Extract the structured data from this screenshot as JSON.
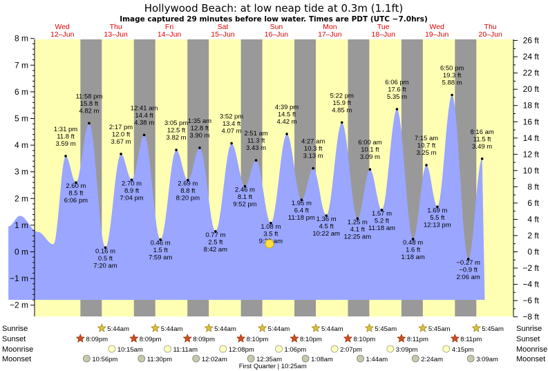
{
  "title": "Hollywood Beach: at low  neap tide at 0.3m (1.1ft)",
  "subtitle": "Image captured 29 minutes before low water. Times are PDT (UTC −7.0hrs)",
  "colors": {
    "day_bg": "#ffffb4",
    "night_bg": "#999999",
    "water": "#9aa6ff",
    "day_label": "#e00000",
    "sun_marker": "#d8c040",
    "sunset_marker": "#d05020",
    "moonrise_marker": "#ffffc0",
    "moonset_marker": "#c8c8b0"
  },
  "days": [
    {
      "dow": "Wed",
      "date": "12–Jun"
    },
    {
      "dow": "Thu",
      "date": "13–Jun"
    },
    {
      "dow": "Fri",
      "date": "14–Jun"
    },
    {
      "dow": "Sat",
      "date": "15–Jun"
    },
    {
      "dow": "Sun",
      "date": "16–Jun"
    },
    {
      "dow": "Mon",
      "date": "17–Jun"
    },
    {
      "dow": "Tue",
      "date": "18–Jun"
    },
    {
      "dow": "Wed",
      "date": "19–Jun"
    },
    {
      "dow": "Thu",
      "date": "20–Jun"
    }
  ],
  "chart_data": {
    "type": "area",
    "title": "Hollywood Beach: at low  neap tide at 0.3m (1.1ft)",
    "y_left": {
      "unit": "m",
      "range": [
        -2,
        8
      ],
      "ticks": [
        "8 m",
        "7 m",
        "6 m",
        "5 m",
        "4 m",
        "3 m",
        "2 m",
        "1 m",
        "0 m",
        "−1 m",
        "−2 m"
      ]
    },
    "y_right": {
      "unit": "ft",
      "ticks": [
        "26 ft",
        "24 ft",
        "22 ft",
        "20 ft",
        "18 ft",
        "16 ft",
        "14 ft",
        "12 ft",
        "10 ft",
        "8 ft",
        "6 ft",
        "4 ft",
        "2 ft",
        "0 ft",
        "−2 ft",
        "−4 ft",
        "−6 ft",
        "−8 ft"
      ]
    },
    "x_hours_range": [
      -12,
      198
    ],
    "tides": [
      {
        "hour": 13.5,
        "m": 3.59,
        "lines": [
          "1:31 pm",
          "11.8 ft",
          "3.59 m"
        ]
      },
      {
        "hour": 18.1,
        "m": 2.6,
        "lines": [
          "2.60 m",
          "8.5 ft",
          "6:06 pm"
        ]
      },
      {
        "hour": 24.0,
        "m": 4.82,
        "lines": [
          "11:58 pm",
          "15.8 ft",
          "4.82 m"
        ]
      },
      {
        "hour": 31.3,
        "m": 0.16,
        "lines": [
          "0.16 m",
          "0.5 ft",
          "7:20 am"
        ]
      },
      {
        "hour": 38.3,
        "m": 3.67,
        "lines": [
          "2:17 pm",
          "12.0 ft",
          "3.67 m"
        ]
      },
      {
        "hour": 43.1,
        "m": 2.7,
        "lines": [
          "2.70 m",
          "8.9 ft",
          "7:04 pm"
        ]
      },
      {
        "hour": 48.7,
        "m": 4.38,
        "lines": [
          "12:41 am",
          "14.4 ft",
          "4.38 m"
        ]
      },
      {
        "hour": 56.0,
        "m": 0.46,
        "lines": [
          "0.46 m",
          "1.5 ft",
          "7:59 am"
        ]
      },
      {
        "hour": 63.1,
        "m": 3.82,
        "lines": [
          "3:05 pm",
          "12.5 ft",
          "3.82 m"
        ]
      },
      {
        "hour": 68.3,
        "m": 2.69,
        "lines": [
          "2.69 m",
          "8.8 ft",
          "8:20 pm"
        ]
      },
      {
        "hour": 73.6,
        "m": 3.9,
        "lines": [
          "1:35 am",
          "12.8 ft",
          "3.90 m"
        ]
      },
      {
        "hour": 80.7,
        "m": 0.77,
        "lines": [
          "0.77 m",
          "2.5 ft",
          "8:42 am"
        ]
      },
      {
        "hour": 87.9,
        "m": 4.07,
        "lines": [
          "3:52 pm",
          "13.4 ft",
          "4.07 m"
        ]
      },
      {
        "hour": 93.9,
        "m": 2.46,
        "lines": [
          "2.46 m",
          "8.1 ft",
          "9:52 pm"
        ]
      },
      {
        "hour": 98.9,
        "m": 3.43,
        "lines": [
          "2:51 am",
          "11.3 ft",
          "3.43 m"
        ]
      },
      {
        "hour": 105.5,
        "m": 1.08,
        "lines": [
          "1.08 m",
          "3.5 ft",
          "9:29 am"
        ]
      },
      {
        "hour": 112.7,
        "m": 4.42,
        "lines": [
          "4:39 pm",
          "14.5 ft",
          "4.42 m"
        ]
      },
      {
        "hour": 119.3,
        "m": 1.95,
        "lines": [
          "1.95 m",
          "6.4 ft",
          "11:18 pm"
        ]
      },
      {
        "hour": 124.5,
        "m": 3.13,
        "lines": [
          "4:27 am",
          "10.3 ft",
          "3.13 m"
        ]
      },
      {
        "hour": 130.4,
        "m": 1.36,
        "lines": [
          "1.36 m",
          "4.5 ft",
          "10:22 am"
        ]
      },
      {
        "hour": 137.4,
        "m": 4.85,
        "lines": [
          "5:22 pm",
          "15.9 ft",
          "4.85 m"
        ]
      },
      {
        "hour": 144.4,
        "m": 1.25,
        "lines": [
          "1.25 m",
          "4.1 ft",
          "12:25 am"
        ]
      },
      {
        "hour": 150.0,
        "m": 3.09,
        "lines": [
          "6:00 am",
          "10.1 ft",
          "3.09 m"
        ]
      },
      {
        "hour": 155.3,
        "m": 1.57,
        "lines": [
          "1.57 m",
          "5.2 ft",
          "11:18 am"
        ]
      },
      {
        "hour": 162.1,
        "m": 5.35,
        "lines": [
          "6:06 pm",
          "17.6 ft",
          "5.35 m"
        ]
      },
      {
        "hour": 169.3,
        "m": 0.48,
        "lines": [
          "0.48 m",
          "1.6 ft",
          "1:18 am"
        ]
      },
      {
        "hour": 175.3,
        "m": 3.25,
        "lines": [
          "7:15 am",
          "10.7 ft",
          "3.25 m"
        ]
      },
      {
        "hour": 180.2,
        "m": 1.69,
        "lines": [
          "1.69 m",
          "5.5 ft",
          "12:13 pm"
        ]
      },
      {
        "hour": 186.8,
        "m": 5.88,
        "lines": [
          "6:50 pm",
          "19.3 ft",
          "5.88 m"
        ]
      },
      {
        "hour": 194.1,
        "m": -0.27,
        "lines": [
          "−0.27 m",
          "−0.9 ft",
          "2:06 am"
        ]
      },
      {
        "hour": 200.3,
        "m": 3.49,
        "lines": [
          "8:16 am",
          "11.5 ft",
          "3.49 m"
        ]
      }
    ]
  },
  "events": {
    "labels": {
      "sunrise": "Sunrise",
      "sunset": "Sunset",
      "moonrise": "Moonrise",
      "moonset": "Moonset"
    },
    "sunrise": [
      {
        "hour": 29.7,
        "t": "5:44am"
      },
      {
        "hour": 53.7,
        "t": "5:44am"
      },
      {
        "hour": 77.7,
        "t": "5:44am"
      },
      {
        "hour": 101.7,
        "t": "5:44am"
      },
      {
        "hour": 125.7,
        "t": "5:44am"
      },
      {
        "hour": 149.7,
        "t": "5:45am"
      },
      {
        "hour": 173.7,
        "t": "5:45am"
      },
      {
        "hour": 197.7,
        "t": "5:45am"
      }
    ],
    "sunset": [
      {
        "hour": 20.1,
        "t": "8:09pm"
      },
      {
        "hour": 44.1,
        "t": "8:09pm"
      },
      {
        "hour": 68.1,
        "t": "8:09pm"
      },
      {
        "hour": 92.1,
        "t": "8:10pm"
      },
      {
        "hour": 116.1,
        "t": "8:10pm"
      },
      {
        "hour": 140.1,
        "t": "8:10pm"
      },
      {
        "hour": 164.1,
        "t": "8:11pm"
      },
      {
        "hour": 188.1,
        "t": "8:11pm"
      }
    ],
    "moonrise": [
      {
        "hour": 34.2,
        "t": "10:15am"
      },
      {
        "hour": 59.2,
        "t": "11:11am"
      },
      {
        "hour": 84.1,
        "t": "12:08pm"
      },
      {
        "hour": 109.1,
        "t": "1:06pm"
      },
      {
        "hour": 134.1,
        "t": "2:07pm"
      },
      {
        "hour": 159.1,
        "t": "3:09pm"
      },
      {
        "hour": 184.2,
        "t": "4:15pm"
      }
    ],
    "moonset": [
      {
        "hour": 22.9,
        "t": "10:56pm"
      },
      {
        "hour": 47.5,
        "t": "11:30pm"
      },
      {
        "hour": 72.0,
        "t": "12:02am"
      },
      {
        "hour": 96.6,
        "t": "12:35am"
      },
      {
        "hour": 121.1,
        "t": "1:08am"
      },
      {
        "hour": 145.7,
        "t": "1:44am"
      },
      {
        "hour": 170.4,
        "t": "2:24am"
      },
      {
        "hour": 195.2,
        "t": "3:09am"
      }
    ],
    "moon_phase": {
      "hour": 106.4,
      "text": "First Quarter | 10:25am"
    }
  }
}
